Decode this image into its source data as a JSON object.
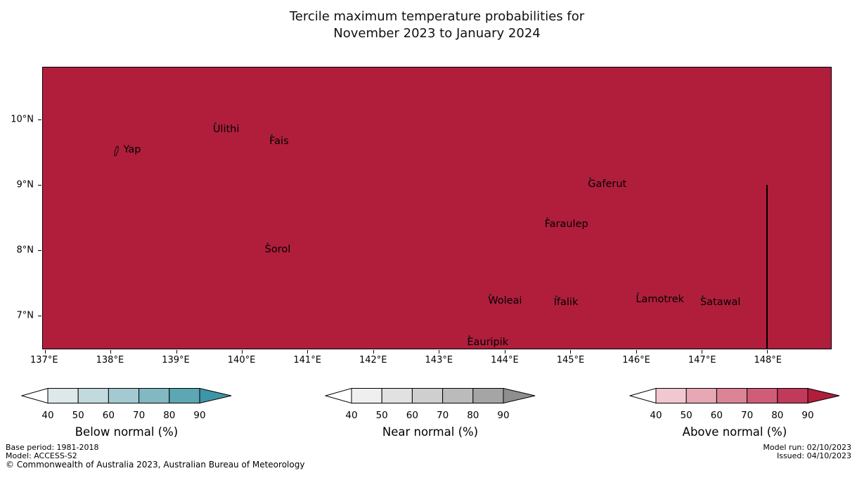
{
  "title": {
    "line1": "Tercile maximum temperature probabilities for",
    "line2": "November 2023 to January 2024"
  },
  "map": {
    "fill_color": "#b01e3c",
    "extent": {
      "lon_min": 136.97,
      "lon_max": 148.97,
      "lat_min": 6.49,
      "lat_max": 10.8
    },
    "xticks": [
      {
        "lon": 137,
        "label": "137°E"
      },
      {
        "lon": 138,
        "label": "138°E"
      },
      {
        "lon": 139,
        "label": "139°E"
      },
      {
        "lon": 140,
        "label": "140°E"
      },
      {
        "lon": 141,
        "label": "141°E"
      },
      {
        "lon": 142,
        "label": "142°E"
      },
      {
        "lon": 143,
        "label": "143°E"
      },
      {
        "lon": 144,
        "label": "144°E"
      },
      {
        "lon": 145,
        "label": "145°E"
      },
      {
        "lon": 146,
        "label": "146°E"
      },
      {
        "lon": 147,
        "label": "147°E"
      },
      {
        "lon": 148,
        "label": "148°E"
      }
    ],
    "yticks": [
      {
        "lat": 10,
        "label": "10°N"
      },
      {
        "lat": 9,
        "label": "9°N"
      },
      {
        "lat": 8,
        "label": "8°N"
      },
      {
        "lat": 7,
        "label": "7°N"
      }
    ],
    "places": [
      {
        "name": "Yap",
        "lon": 138.11,
        "lat": 9.52,
        "marker": "island-outline"
      },
      {
        "name": "Ulithi",
        "lon": 139.58,
        "lat": 9.96,
        "marker": "dot"
      },
      {
        "name": "Fais",
        "lon": 140.44,
        "lat": 9.78,
        "marker": "dot"
      },
      {
        "name": "Gaferut",
        "lon": 145.29,
        "lat": 9.12,
        "marker": "dot"
      },
      {
        "name": "Faraulep",
        "lon": 144.63,
        "lat": 8.51,
        "marker": "dot"
      },
      {
        "name": "Sorol",
        "lon": 140.37,
        "lat": 8.12,
        "marker": "dot"
      },
      {
        "name": "Woleai",
        "lon": 143.77,
        "lat": 7.33,
        "marker": "dot"
      },
      {
        "name": "Ifalik",
        "lon": 144.77,
        "lat": 7.31,
        "marker": "dot"
      },
      {
        "name": "Lamotrek",
        "lon": 146.02,
        "lat": 7.35,
        "marker": "dot"
      },
      {
        "name": "Satawal",
        "lon": 147.0,
        "lat": 7.31,
        "marker": "dot"
      },
      {
        "name": "Eauripik",
        "lon": 143.45,
        "lat": 6.7,
        "marker": "dot"
      }
    ],
    "boundary_line": {
      "lon": 148,
      "lat_from": 9.0,
      "lat_to": 6.49
    }
  },
  "legends": [
    {
      "id": "below",
      "label": "Below normal (%)",
      "ticks": [
        "40",
        "50",
        "60",
        "70",
        "80",
        "90"
      ],
      "under_color": "#ffffff",
      "cell_colors": [
        "#dce8ea",
        "#c2d9dd",
        "#a4cad1",
        "#81b8c2",
        "#5da6b4"
      ],
      "over_color": "#3e95a6"
    },
    {
      "id": "near",
      "label": "Near normal (%)",
      "ticks": [
        "40",
        "50",
        "60",
        "70",
        "80",
        "90"
      ],
      "under_color": "#ffffff",
      "cell_colors": [
        "#efefef",
        "#e1e1e1",
        "#cfcfcf",
        "#bbbbbb",
        "#a5a5a5"
      ],
      "over_color": "#8f8f8f"
    },
    {
      "id": "above",
      "label": "Above normal (%)",
      "ticks": [
        "40",
        "50",
        "60",
        "70",
        "80",
        "90"
      ],
      "under_color": "#ffffff",
      "cell_colors": [
        "#f1c8d0",
        "#e7a7b4",
        "#dc8396",
        "#cf5d78",
        "#c13a59"
      ],
      "over_color": "#b01e3c"
    }
  ],
  "footer": {
    "base_period": "Base period: 1981-2018",
    "model": "Model: ACCESS-S2",
    "copyright": "© Commonwealth of Australia 2023, Australian Bureau of Meteorology",
    "model_run": "Model run: 02/10/2023",
    "issued": "Issued: 04/10/2023"
  },
  "chart_data": {
    "type": "heatmap",
    "title": "Tercile maximum temperature probabilities for November 2023 to January 2024",
    "x_ticks": [
      "137°E",
      "138°E",
      "139°E",
      "140°E",
      "141°E",
      "142°E",
      "143°E",
      "144°E",
      "145°E",
      "146°E",
      "147°E",
      "148°E"
    ],
    "y_ticks": [
      "10°N",
      "9°N",
      "8°N",
      "7°N"
    ],
    "x_range": [
      136.97,
      148.97
    ],
    "y_range": [
      6.49,
      10.8
    ],
    "value_shown": "Above normal (%) > 90 across the entire displayed region",
    "legend_entries": [
      "Below normal (%)",
      "Near normal (%)",
      "Above normal (%)"
    ],
    "legend_tick_values": [
      40,
      50,
      60,
      70,
      80,
      90
    ],
    "labeled_places": [
      "Yap",
      "Ulithi",
      "Fais",
      "Gaferut",
      "Faraulep",
      "Sorol",
      "Woleai",
      "Ifalik",
      "Lamotrek",
      "Satawal",
      "Eauripik"
    ]
  }
}
